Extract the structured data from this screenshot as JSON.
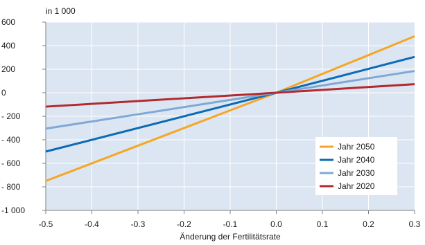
{
  "chart_data": {
    "type": "line",
    "unit_label": "in 1 000",
    "xlabel": "Änderung der Fertilitätsrate",
    "ylabel": "",
    "xlim": [
      -0.5,
      0.3
    ],
    "ylim": [
      -1000,
      600
    ],
    "x_ticks": [
      -0.5,
      -0.4,
      -0.3,
      -0.2,
      -0.1,
      0,
      0.1,
      0.2,
      0.3
    ],
    "x_tick_labels": [
      "-0.5",
      "-0.4",
      "-0.3",
      "-0.2",
      "-0.1",
      "0.0",
      "0.1",
      "0.2",
      "0.3"
    ],
    "y_ticks": [
      600,
      400,
      200,
      0,
      -200,
      -400,
      -600,
      -800,
      -1000
    ],
    "y_tick_labels": [
      "600",
      "400",
      "200",
      "0",
      "- 200",
      "- 400",
      "- 600",
      "- 800",
      "-1 000"
    ],
    "grid": true,
    "background_color": "#dce6f2",
    "gridline_color": "#ffffff",
    "legend_position": "bottom-right",
    "x": [
      -0.5,
      0,
      0.3
    ],
    "series": [
      {
        "name": "Jahr 2050",
        "color": "#f5a623",
        "values": [
          -750,
          0,
          480
        ]
      },
      {
        "name": "Jahr 2040",
        "color": "#0b6bb5",
        "values": [
          -500,
          0,
          305
        ]
      },
      {
        "name": "Jahr 2030",
        "color": "#7fa9d5",
        "values": [
          -305,
          0,
          185
        ]
      },
      {
        "name": "Jahr 2020",
        "color": "#b22a2f",
        "values": [
          -118,
          0,
          73
        ]
      }
    ]
  }
}
